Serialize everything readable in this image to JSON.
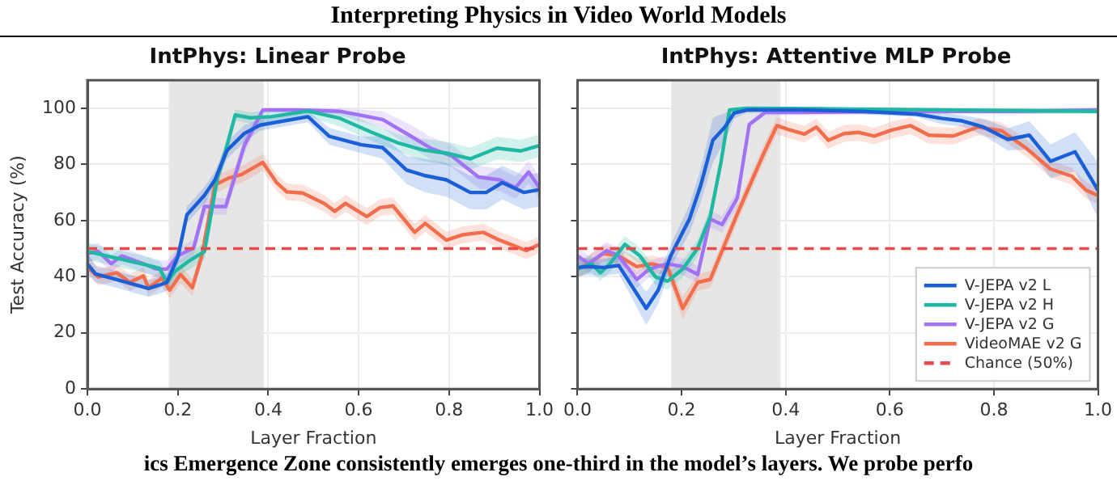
{
  "chart_data": [
    {
      "type": "line",
      "title": "IntPhys: Linear Probe",
      "xlabel": "Layer Fraction",
      "ylabel": "Test Accuracy (%)",
      "xlim": [
        0,
        1
      ],
      "xticks": [
        {
          "value": 0,
          "label": "0.0"
        },
        {
          "value": 0.2,
          "label": "0.2"
        },
        {
          "value": 0.4,
          "label": "0.4"
        },
        {
          "value": 0.6,
          "label": "0.6"
        },
        {
          "value": 0.8,
          "label": "0.8"
        },
        {
          "value": 1,
          "label": "1.0"
        }
      ],
      "ylim": [
        0,
        110
      ],
      "yticks": [
        0,
        20,
        40,
        60,
        80,
        100
      ],
      "grid": true,
      "legend": false,
      "marker": "none",
      "line_style": "solid",
      "bands": [
        {
          "axis": "x",
          "from": 0.18,
          "to": 0.39,
          "color": "#e6e6e6"
        }
      ],
      "ref_lines": [
        {
          "axis": "y",
          "value": 50,
          "color": "#e84a4a",
          "line_style": "dashed"
        }
      ],
      "series": [
        {
          "color": "#1a5fd6",
          "x": [
            0,
            0.018,
            0.065,
            0.135,
            0.159,
            0.176,
            0.2,
            0.22,
            0.259,
            0.282,
            0.309,
            0.347,
            0.382,
            0.488,
            0.535,
            0.606,
            0.653,
            0.706,
            0.747,
            0.794,
            0.847,
            0.882,
            0.918,
            0.965,
            1.0
          ],
          "values": [
            44.6,
            41,
            39,
            35.8,
            37,
            38,
            47,
            62,
            69,
            74.5,
            85,
            91,
            94,
            97,
            90,
            87,
            86,
            78,
            76,
            74.5,
            70,
            70,
            73.5,
            70,
            71
          ],
          "lower": [
            40.6,
            38,
            36,
            32.8,
            34,
            35,
            44,
            59,
            66,
            71.5,
            82,
            88,
            92,
            95,
            87,
            84,
            82,
            73,
            70,
            68.5,
            64,
            64,
            67.5,
            64,
            65
          ],
          "upper": [
            48.6,
            44,
            42,
            38.8,
            40,
            41,
            50,
            65,
            72,
            77.5,
            88,
            94,
            96,
            99,
            93,
            90,
            90,
            83,
            82,
            80.5,
            76,
            76,
            79.5,
            76,
            77
          ]
        },
        {
          "color": "#1fb8a2",
          "x": [
            0,
            0.053,
            0.135,
            0.159,
            0.176,
            0.194,
            0.224,
            0.259,
            0.288,
            0.306,
            0.327,
            0.359,
            0.406,
            0.488,
            0.559,
            0.629,
            0.688,
            0.741,
            0.794,
            0.847,
            0.906,
            0.959,
            1.0
          ],
          "values": [
            49,
            47,
            44,
            43,
            38,
            42,
            45.5,
            49,
            75.5,
            85,
            97.6,
            96.6,
            97,
            99,
            96.4,
            91.4,
            87.6,
            85.2,
            84,
            82,
            85.8,
            84.8,
            86.7
          ],
          "lower": [
            46,
            44,
            41,
            40,
            35,
            39,
            42.5,
            46,
            72.5,
            82,
            95.6,
            94.6,
            95,
            97,
            93.4,
            88.4,
            84.6,
            81.2,
            80,
            78,
            81.8,
            80.8,
            82.7
          ],
          "upper": [
            52,
            50,
            47,
            46,
            41,
            45,
            48.5,
            52,
            78.5,
            88,
            99.6,
            98.6,
            99,
            100,
            99.4,
            94.4,
            90.6,
            89.2,
            88,
            86,
            89.8,
            88.8,
            90.7
          ]
        },
        {
          "color": "#a173f2",
          "x": [
            0,
            0.024,
            0.053,
            0.076,
            0.124,
            0.153,
            0.176,
            0.2,
            0.235,
            0.259,
            0.306,
            0.347,
            0.388,
            0.465,
            0.559,
            0.653,
            0.712,
            0.759,
            0.806,
            0.865,
            0.912,
            0.947,
            0.976,
            1.0
          ],
          "values": [
            48.3,
            49,
            44.6,
            47.4,
            44.6,
            42.7,
            42.7,
            47.4,
            50.2,
            65,
            65,
            86.7,
            99.4,
            99.4,
            98.9,
            96,
            90.4,
            85.8,
            83,
            75.5,
            74.5,
            71.7,
            77.3,
            71.7
          ],
          "lower": [
            45.3,
            46,
            41.6,
            44.4,
            41.6,
            39.7,
            39.7,
            44.4,
            47.2,
            62,
            62,
            83.7,
            98.4,
            98.4,
            97.4,
            93,
            86.4,
            81.8,
            79,
            71.5,
            70.5,
            67.7,
            73.3,
            67.7
          ],
          "upper": [
            51.3,
            52,
            47.6,
            50.4,
            47.6,
            45.7,
            45.7,
            50.4,
            53.2,
            68,
            68,
            89.7,
            100,
            100,
            100,
            99,
            94.4,
            89.8,
            87,
            79.5,
            78.5,
            75.7,
            81.3,
            75.7
          ]
        },
        {
          "color": "#f26d4b",
          "x": [
            0,
            0.024,
            0.065,
            0.094,
            0.124,
            0.135,
            0.165,
            0.182,
            0.206,
            0.232,
            0.253,
            0.282,
            0.312,
            0.341,
            0.388,
            0.418,
            0.441,
            0.476,
            0.524,
            0.547,
            0.571,
            0.618,
            0.647,
            0.676,
            0.724,
            0.747,
            0.794,
            0.829,
            0.876,
            0.912,
            0.971,
            1.0
          ],
          "values": [
            43.2,
            39.9,
            41.4,
            38,
            40.3,
            36.1,
            39.5,
            35.2,
            40.8,
            36.1,
            47.4,
            72.7,
            75.1,
            76.4,
            80.7,
            73.6,
            70.2,
            69.8,
            66.1,
            63.3,
            66.1,
            61.4,
            64.6,
            65.2,
            55.8,
            59,
            53,
            54.9,
            55.8,
            53,
            49.3,
            51.5
          ],
          "lower": [
            41.6,
            36.9,
            38.4,
            35,
            37.3,
            33.1,
            36.5,
            32.2,
            37.8,
            33.1,
            44.4,
            69.7,
            72.1,
            73.4,
            77.7,
            70.6,
            67.2,
            66.8,
            63.1,
            60.3,
            63.1,
            58.4,
            61.6,
            62.2,
            52.8,
            56,
            50,
            51.9,
            52.8,
            50,
            46.3,
            48.5
          ],
          "upper": [
            47.6,
            42.9,
            44.4,
            41,
            43.3,
            39.1,
            42.5,
            38.2,
            43.8,
            39.1,
            50.4,
            75.7,
            78.1,
            79.4,
            83.7,
            76.6,
            73.2,
            72.8,
            69.1,
            66.3,
            69.1,
            64.4,
            67.6,
            68.2,
            58.8,
            62,
            56,
            57.9,
            58.8,
            56,
            52.3,
            54.5
          ]
        }
      ]
    },
    {
      "type": "line",
      "title": "IntPhys: Attentive MLP Probe",
      "xlabel": "Layer Fraction",
      "xlim": [
        0,
        1
      ],
      "xticks": [
        {
          "value": 0,
          "label": "0.0"
        },
        {
          "value": 0.2,
          "label": "0.2"
        },
        {
          "value": 0.4,
          "label": "0.4"
        },
        {
          "value": 0.6,
          "label": "0.6"
        },
        {
          "value": 0.8,
          "label": "0.8"
        },
        {
          "value": 1,
          "label": "1.0"
        }
      ],
      "ylim": [
        0,
        110
      ],
      "yticks": [
        0,
        20,
        40,
        60,
        80,
        100
      ],
      "tick_labels": "x",
      "grid": true,
      "legend": "bottom right",
      "marker": "none",
      "line_style": "solid",
      "bands": [
        {
          "axis": "x",
          "from": 0.18,
          "to": 0.39,
          "color": "#e6e6e6"
        }
      ],
      "ref_lines": [
        {
          "axis": "y",
          "value": 50,
          "label": "Chance (50%)",
          "color": "#e84a4a",
          "line_style": "dashed"
        }
      ],
      "series": [
        {
          "name": "V-JEPA v2 L",
          "color": "#1a5fd6",
          "x": [
            0,
            0.021,
            0.05,
            0.079,
            0.1,
            0.132,
            0.155,
            0.179,
            0.215,
            0.237,
            0.26,
            0.283,
            0.301,
            0.325,
            0.43,
            0.547,
            0.652,
            0.699,
            0.739,
            0.78,
            0.827,
            0.868,
            0.909,
            0.956,
            1.0
          ],
          "values": [
            43.3,
            43.6,
            43.3,
            44,
            38,
            28.7,
            35.2,
            47.4,
            60.5,
            72.7,
            88.6,
            93.3,
            98.3,
            99.4,
            99.4,
            98.9,
            97.9,
            96.4,
            95.5,
            93.3,
            88.9,
            90.4,
            81.1,
            84.5,
            70.8
          ],
          "lower": [
            40.3,
            40.6,
            40.3,
            41,
            34,
            22.7,
            30.2,
            43.4,
            55.5,
            66.7,
            80.6,
            88.3,
            96.3,
            98.4,
            98.4,
            97.9,
            96.9,
            94.4,
            93.5,
            90.3,
            84.9,
            85.4,
            75.1,
            77.5,
            60.8
          ],
          "upper": [
            46.3,
            46.6,
            46.3,
            47,
            42,
            34.7,
            40.2,
            51.4,
            65.5,
            78.7,
            96.6,
            98.3,
            100,
            100,
            100,
            99.9,
            98.9,
            98.4,
            97.5,
            96.3,
            92.9,
            95.4,
            87.1,
            91.5,
            80.8
          ]
        },
        {
          "name": "V-JEPA v2 H",
          "color": "#1fb8a2",
          "x": [
            0,
            0.027,
            0.044,
            0.062,
            0.091,
            0.12,
            0.15,
            0.173,
            0.202,
            0.231,
            0.255,
            0.276,
            0.292,
            0.325,
            0.488,
            1.0
          ],
          "values": [
            42.7,
            44.6,
            41.4,
            44.6,
            51.5,
            47.4,
            39.9,
            38.4,
            42.7,
            50.2,
            61.4,
            81.1,
            99.4,
            100,
            99.8,
            98.9
          ],
          "lower": [
            39.7,
            41.6,
            38.4,
            41.6,
            48.5,
            44.4,
            36.9,
            35.4,
            39.7,
            47.2,
            58.4,
            78.1,
            98.4,
            99,
            98.8,
            97.9
          ],
          "upper": [
            45.7,
            47.6,
            44.4,
            47.6,
            54.5,
            50.4,
            42.9,
            41.4,
            45.7,
            53.2,
            64.4,
            84.1,
            100,
            100,
            100,
            99.9
          ]
        },
        {
          "name": "V-JEPA v2 G",
          "color": "#a173f2",
          "x": [
            0,
            0.021,
            0.056,
            0.079,
            0.114,
            0.138,
            0.173,
            0.202,
            0.231,
            0.255,
            0.278,
            0.307,
            0.33,
            0.36,
            0.43,
            0.605,
            0.839,
            1.0
          ],
          "values": [
            47.4,
            44.6,
            49.3,
            47.4,
            39,
            42.7,
            44.6,
            43.6,
            40.8,
            60.5,
            58.6,
            68,
            94.2,
            98.5,
            98.5,
            98.9,
            98.9,
            99.4
          ],
          "lower": [
            44.4,
            41.6,
            46.3,
            44.4,
            36,
            39.7,
            41.6,
            40.6,
            37.8,
            57.5,
            55.6,
            65,
            93.2,
            97.5,
            97.5,
            97.9,
            97.9,
            98.4
          ],
          "upper": [
            50.4,
            47.6,
            52.3,
            50.4,
            42,
            45.7,
            47.6,
            46.6,
            43.8,
            63.5,
            61.6,
            71,
            95.2,
            99.5,
            99.5,
            99.9,
            99.9,
            100
          ]
        },
        {
          "name": "VideoMAE v2 G",
          "color": "#f26d4b",
          "x": [
            0,
            0.021,
            0.05,
            0.079,
            0.114,
            0.143,
            0.173,
            0.202,
            0.231,
            0.255,
            0.278,
            0.307,
            0.36,
            0.383,
            0.407,
            0.436,
            0.459,
            0.482,
            0.512,
            0.541,
            0.57,
            0.605,
            0.64,
            0.675,
            0.722,
            0.769,
            0.815,
            0.862,
            0.909,
            0.95,
            0.977,
            1.0
          ],
          "values": [
            42.7,
            44.6,
            48.3,
            47.4,
            43.6,
            44.6,
            43.3,
            28.7,
            38,
            39,
            49.3,
            62.4,
            84.8,
            93.8,
            92.3,
            90.8,
            93.3,
            88.6,
            91,
            91.4,
            90.1,
            92.3,
            93.8,
            90.4,
            90.1,
            93.3,
            92,
            85.8,
            78.3,
            75.8,
            70.8,
            68.9
          ],
          "lower": [
            39.7,
            41.6,
            45.3,
            44.4,
            40.6,
            41.6,
            40.3,
            24.7,
            35,
            36,
            46.3,
            59.4,
            81.8,
            90.8,
            89.3,
            87.8,
            90.3,
            85.6,
            88,
            88.4,
            87.1,
            89.3,
            90.8,
            87.4,
            87.1,
            90.3,
            89,
            82.8,
            75.3,
            72.8,
            67.8,
            65.9
          ],
          "upper": [
            45.7,
            47.6,
            51.3,
            50.4,
            46.6,
            47.6,
            46.3,
            32.7,
            41,
            42,
            52.3,
            65.4,
            87.8,
            96.8,
            95.3,
            93.8,
            96.3,
            91.6,
            94,
            94.4,
            93.1,
            95.3,
            96.8,
            93.4,
            93.1,
            96.3,
            95,
            88.8,
            81.3,
            78.8,
            73.8,
            71.9
          ]
        }
      ]
    },
    {
      "type": "other",
      "annotations": [
        "Interpreting Physics in Video World Models",
        "ics Emergence Zone consistently emerges one-third in the model’s layers. We probe perfo"
      ]
    }
  ]
}
